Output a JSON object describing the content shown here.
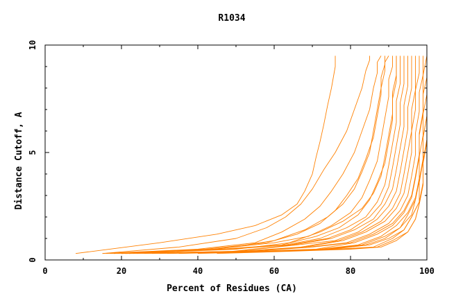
{
  "chart_data": {
    "type": "line",
    "title": "R1034",
    "xlabel": "Percent of Residues (CA)",
    "ylabel": "Distance Cutoff, A",
    "xlim": [
      0,
      100
    ],
    "ylim": [
      0,
      10
    ],
    "xticks": [
      0,
      20,
      40,
      60,
      80,
      100
    ],
    "yticks": [
      0,
      5,
      10
    ],
    "grid": false,
    "line_color": "#ff8000",
    "series": [
      {
        "x": [
          8,
          30,
          45,
          55,
          62,
          66,
          68,
          70,
          71,
          72,
          73,
          74,
          75,
          76,
          76
        ],
        "y": [
          0.3,
          0.8,
          1.2,
          1.6,
          2.1,
          2.6,
          3.2,
          4.0,
          4.8,
          5.5,
          6.3,
          7.2,
          8.0,
          9.0,
          9.5
        ]
      },
      {
        "x": [
          15,
          35,
          50,
          58,
          63,
          67,
          70,
          73,
          76,
          79,
          81,
          83,
          84,
          85,
          85
        ],
        "y": [
          0.3,
          0.6,
          1.0,
          1.5,
          2.0,
          2.6,
          3.3,
          4.2,
          5.0,
          6.0,
          7.0,
          8.0,
          8.8,
          9.3,
          9.5
        ]
      },
      {
        "x": [
          15,
          40,
          55,
          62,
          68,
          72,
          75,
          78,
          81,
          83,
          85,
          86,
          87,
          87,
          88
        ],
        "y": [
          0.3,
          0.5,
          0.8,
          1.3,
          1.9,
          2.5,
          3.2,
          4.0,
          5.0,
          6.0,
          7.0,
          8.0,
          8.7,
          9.2,
          9.5
        ]
      },
      {
        "x": [
          16,
          42,
          58,
          66,
          72,
          76,
          79,
          82,
          84,
          86,
          87,
          88,
          88,
          89,
          89
        ],
        "y": [
          0.3,
          0.5,
          0.8,
          1.2,
          1.7,
          2.3,
          3.0,
          3.8,
          4.7,
          5.7,
          6.7,
          7.7,
          8.5,
          9.1,
          9.5
        ]
      },
      {
        "x": [
          17,
          44,
          60,
          69,
          75,
          80,
          83,
          85,
          87,
          88,
          89,
          90,
          90,
          91,
          91
        ],
        "y": [
          0.3,
          0.5,
          0.8,
          1.1,
          1.6,
          2.2,
          2.9,
          3.7,
          4.6,
          5.6,
          6.6,
          7.6,
          8.4,
          9.0,
          9.5
        ]
      },
      {
        "x": [
          18,
          46,
          62,
          71,
          77,
          82,
          85,
          87,
          89,
          90,
          91,
          91,
          92,
          92,
          92
        ],
        "y": [
          0.3,
          0.5,
          0.7,
          1.1,
          1.5,
          2.1,
          2.8,
          3.6,
          4.5,
          5.5,
          6.5,
          7.5,
          8.3,
          8.9,
          9.5
        ]
      },
      {
        "x": [
          18,
          47,
          63,
          72,
          79,
          84,
          87,
          89,
          90,
          91,
          92,
          92,
          93,
          93,
          93
        ],
        "y": [
          0.3,
          0.5,
          0.7,
          1.0,
          1.5,
          2.0,
          2.7,
          3.5,
          4.4,
          5.4,
          6.4,
          7.4,
          8.2,
          8.9,
          9.5
        ]
      },
      {
        "x": [
          19,
          48,
          64,
          74,
          80,
          85,
          88,
          90,
          91,
          92,
          93,
          93,
          94,
          94,
          94
        ],
        "y": [
          0.3,
          0.5,
          0.7,
          1.0,
          1.4,
          2.0,
          2.6,
          3.4,
          4.3,
          5.3,
          6.3,
          7.3,
          8.2,
          8.8,
          9.5
        ]
      },
      {
        "x": [
          20,
          49,
          65,
          75,
          81,
          86,
          89,
          91,
          92,
          93,
          94,
          94,
          95,
          95,
          95
        ],
        "y": [
          0.3,
          0.4,
          0.7,
          1.0,
          1.4,
          1.9,
          2.6,
          3.3,
          4.2,
          5.2,
          6.2,
          7.2,
          8.1,
          8.8,
          9.5
        ]
      },
      {
        "x": [
          20,
          50,
          66,
          76,
          82,
          87,
          90,
          92,
          93,
          94,
          95,
          95,
          96,
          96,
          96
        ],
        "y": [
          0.3,
          0.4,
          0.7,
          0.9,
          1.3,
          1.9,
          2.5,
          3.2,
          4.1,
          5.1,
          6.1,
          7.1,
          8.0,
          8.7,
          9.5
        ]
      },
      {
        "x": [
          21,
          51,
          67,
          77,
          83,
          88,
          91,
          93,
          94,
          95,
          96,
          96,
          97,
          97,
          97
        ],
        "y": [
          0.3,
          0.4,
          0.6,
          0.9,
          1.3,
          1.8,
          2.4,
          3.1,
          4.0,
          5.0,
          6.0,
          7.0,
          7.9,
          8.7,
          9.5
        ]
      },
      {
        "x": [
          21,
          52,
          68,
          78,
          84,
          89,
          92,
          94,
          95,
          96,
          96,
          97,
          97,
          98,
          98
        ],
        "y": [
          0.3,
          0.4,
          0.6,
          0.9,
          1.3,
          1.8,
          2.4,
          3.1,
          4.0,
          5.0,
          6.0,
          7.0,
          7.9,
          8.7,
          9.5
        ]
      },
      {
        "x": [
          22,
          53,
          69,
          79,
          85,
          90,
          93,
          95,
          96,
          97,
          97,
          98,
          98,
          99,
          99
        ],
        "y": [
          0.3,
          0.4,
          0.6,
          0.8,
          1.2,
          1.7,
          2.3,
          3.0,
          3.9,
          4.9,
          5.9,
          6.9,
          7.8,
          8.6,
          9.5
        ]
      },
      {
        "x": [
          23,
          54,
          70,
          80,
          86,
          91,
          94,
          96,
          97,
          98,
          98,
          99,
          99,
          99,
          100
        ],
        "y": [
          0.3,
          0.4,
          0.6,
          0.8,
          1.2,
          1.7,
          2.3,
          3.0,
          3.9,
          4.9,
          5.9,
          6.9,
          7.8,
          8.6,
          9.5
        ]
      },
      {
        "x": [
          24,
          55,
          71,
          81,
          87,
          91,
          94,
          96,
          97,
          98,
          98,
          99,
          99,
          100,
          100
        ],
        "y": [
          0.3,
          0.4,
          0.5,
          0.8,
          1.2,
          1.6,
          2.2,
          2.9,
          3.8,
          4.8,
          5.8,
          6.8,
          7.7,
          8.5,
          9.5
        ]
      },
      {
        "x": [
          26,
          56,
          72,
          82,
          88,
          92,
          95,
          97,
          98,
          98,
          99,
          99,
          100,
          100,
          100
        ],
        "y": [
          0.3,
          0.4,
          0.5,
          0.7,
          1.1,
          1.6,
          2.2,
          2.9,
          3.8,
          4.8,
          5.8,
          6.8,
          7.7,
          8.5,
          9.5
        ]
      },
      {
        "x": [
          28,
          57,
          73,
          83,
          89,
          93,
          95,
          97,
          98,
          99,
          99,
          100,
          100,
          100,
          100
        ],
        "y": [
          0.3,
          0.4,
          0.5,
          0.7,
          1.1,
          1.5,
          2.1,
          2.8,
          3.7,
          4.7,
          5.7,
          6.7,
          7.6,
          8.5,
          9.5
        ]
      },
      {
        "x": [
          30,
          58,
          74,
          84,
          89,
          93,
          96,
          97,
          98,
          99,
          99,
          100,
          100,
          100,
          100
        ],
        "y": [
          0.3,
          0.4,
          0.5,
          0.7,
          1.0,
          1.5,
          2.1,
          2.8,
          3.7,
          4.7,
          5.7,
          6.7,
          7.6,
          8.4,
          9.5
        ]
      },
      {
        "x": [
          32,
          59,
          75,
          85,
          90,
          94,
          96,
          98,
          98,
          99,
          100,
          100,
          100,
          100,
          100
        ],
        "y": [
          0.3,
          0.4,
          0.5,
          0.7,
          1.0,
          1.4,
          2.0,
          2.7,
          3.6,
          4.6,
          5.6,
          6.6,
          7.5,
          8.4,
          9.5
        ]
      },
      {
        "x": [
          35,
          60,
          76,
          86,
          91,
          94,
          96,
          98,
          99,
          99,
          100,
          100,
          100,
          100,
          100
        ],
        "y": [
          0.3,
          0.4,
          0.5,
          0.6,
          1.0,
          1.4,
          2.0,
          2.7,
          3.6,
          4.6,
          5.6,
          6.6,
          7.5,
          8.4,
          9.5
        ]
      },
      {
        "x": [
          40,
          62,
          78,
          87,
          91,
          95,
          97,
          98,
          99,
          99,
          100,
          100,
          100,
          100,
          100
        ],
        "y": [
          0.3,
          0.4,
          0.5,
          0.6,
          0.9,
          1.3,
          1.9,
          2.6,
          3.5,
          4.5,
          5.5,
          6.5,
          7.4,
          8.3,
          9.5
        ]
      },
      {
        "x": [
          45,
          64,
          80,
          88,
          92,
          95,
          97,
          98,
          99,
          99,
          100,
          100,
          100,
          100,
          100
        ],
        "y": [
          0.3,
          0.4,
          0.5,
          0.6,
          0.9,
          1.3,
          1.9,
          2.6,
          3.5,
          4.5,
          5.5,
          6.5,
          7.4,
          8.3,
          9.5
        ]
      },
      {
        "x": [
          20,
          45,
          60,
          68,
          74,
          78,
          81,
          83,
          85,
          86,
          87,
          88,
          89,
          89,
          90
        ],
        "y": [
          0.3,
          0.5,
          0.9,
          1.4,
          2.0,
          2.6,
          3.3,
          4.1,
          5.0,
          6.0,
          7.0,
          8.0,
          8.8,
          9.2,
          9.5
        ]
      },
      {
        "x": [
          22,
          50,
          64,
          72,
          78,
          83,
          86,
          88,
          89,
          90,
          91,
          91,
          92,
          92,
          92
        ],
        "y": [
          0.3,
          0.5,
          0.8,
          1.3,
          1.8,
          2.4,
          3.1,
          3.9,
          4.8,
          5.8,
          6.8,
          7.8,
          8.6,
          9.1,
          9.5
        ]
      }
    ]
  }
}
